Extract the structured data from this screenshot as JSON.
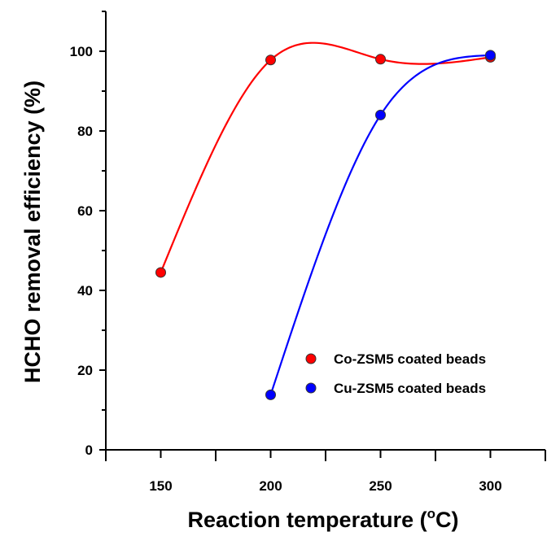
{
  "chart_data": {
    "type": "line",
    "title": "",
    "xlabel": "Reaction temperature (",
    "xlabel_sup": "o",
    "xlabel_tail": "C)",
    "ylabel": "HCHO removal efficiency (%)",
    "xlim": [
      125,
      325
    ],
    "ylim": [
      0,
      110
    ],
    "x_ticks": [
      150,
      200,
      250,
      300
    ],
    "x_minor_ticks": [
      125,
      175,
      225,
      275,
      325
    ],
    "y_ticks": [
      0,
      20,
      40,
      60,
      80,
      100
    ],
    "y_minor_ticks": [
      10,
      30,
      50,
      70,
      90,
      110
    ],
    "legend_position": "bottom-right",
    "grid": false,
    "series": [
      {
        "name": "Co-ZSM5 coated beads",
        "color": "#ff0000",
        "x": [
          150,
          200,
          250,
          300
        ],
        "y": [
          44.5,
          97.8,
          98.0,
          98.5
        ]
      },
      {
        "name": "Cu-ZSM5 coated beads",
        "color": "#0000ff",
        "x": [
          200,
          250,
          300
        ],
        "y": [
          13.8,
          84.0,
          99.0
        ]
      }
    ]
  }
}
